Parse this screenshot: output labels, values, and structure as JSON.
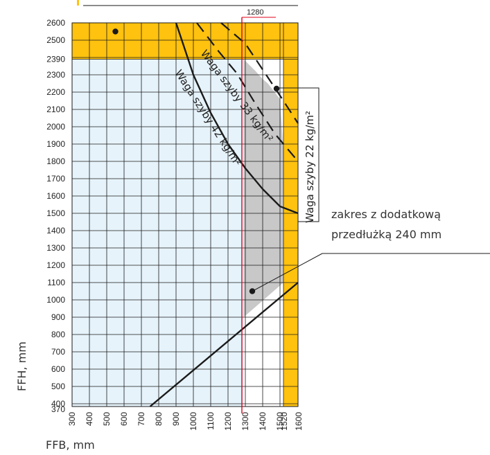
{
  "chart_data": {
    "type": "area",
    "xlabel": "FFB, mm",
    "ylabel": "FFH, mm",
    "x_ticks": [
      300,
      400,
      500,
      600,
      700,
      800,
      900,
      1000,
      1100,
      1200,
      1300,
      1400,
      1500,
      1520,
      1600
    ],
    "y_ticks": [
      370,
      400,
      500,
      600,
      700,
      800,
      900,
      1000,
      1100,
      1200,
      1300,
      1400,
      1500,
      1600,
      1700,
      1800,
      1900,
      2000,
      2100,
      2200,
      2300,
      2390,
      2500,
      2600
    ],
    "xlim": [
      300,
      1600
    ],
    "ylim": [
      370,
      2600
    ],
    "grid": true,
    "reference_line": {
      "x": 1280,
      "label": "1280"
    },
    "regions": [
      {
        "key": "standard",
        "color": "#e6f3fb",
        "polygon": [
          [
            300,
            370
          ],
          [
            300,
            2390
          ],
          [
            1290,
            2390
          ],
          [
            1290,
            370
          ]
        ]
      },
      {
        "key": "extension",
        "color": "#c8c8c8",
        "label_lines": [
          "zakres z dodatkową",
          "przedłużką 240 mm"
        ],
        "polygon": [
          [
            1290,
            2390
          ],
          [
            1290,
            900
          ],
          [
            1520,
            1100
          ],
          [
            1520,
            1850
          ],
          [
            1500,
            2160
          ],
          [
            1430,
            2250
          ],
          [
            1400,
            2275
          ],
          [
            1360,
            2320
          ]
        ]
      },
      {
        "key": "top_band",
        "color": "#ffc20e",
        "polygon": [
          [
            300,
            2390
          ],
          [
            300,
            2600
          ],
          [
            1600,
            2600
          ],
          [
            1600,
            2390
          ]
        ]
      },
      {
        "key": "right_band",
        "color": "#ffc20e",
        "polygon": [
          [
            1520,
            370
          ],
          [
            1520,
            2600
          ],
          [
            1600,
            2600
          ],
          [
            1600,
            370
          ]
        ]
      }
    ],
    "series": [
      {
        "label": "Waga szyby 42 kg/m²",
        "style": "solid",
        "points": [
          [
            900,
            2600
          ],
          [
            1000,
            2300
          ],
          [
            1100,
            2080
          ],
          [
            1200,
            1900
          ],
          [
            1300,
            1760
          ],
          [
            1400,
            1640
          ],
          [
            1500,
            1540
          ],
          [
            1600,
            1500
          ]
        ]
      },
      {
        "label": "Waga szyby 33 kg/m²",
        "style": "dashed",
        "points": [
          [
            1020,
            2600
          ],
          [
            1150,
            2430
          ],
          [
            1250,
            2310
          ],
          [
            1360,
            2130
          ],
          [
            1470,
            1960
          ],
          [
            1600,
            1800
          ]
        ]
      },
      {
        "label": "Waga szyby 22 kg/m²",
        "style": "dashed",
        "points": [
          [
            1160,
            2600
          ],
          [
            1300,
            2480
          ],
          [
            1400,
            2330
          ],
          [
            1500,
            2180
          ],
          [
            1600,
            2020
          ]
        ]
      },
      {
        "label": "",
        "style": "solid",
        "points": [
          [
            750,
            370
          ],
          [
            1600,
            1100
          ]
        ]
      }
    ],
    "marker_points": [
      [
        550,
        2550
      ],
      [
        1480,
        2220
      ],
      [
        1340,
        1050
      ]
    ]
  }
}
